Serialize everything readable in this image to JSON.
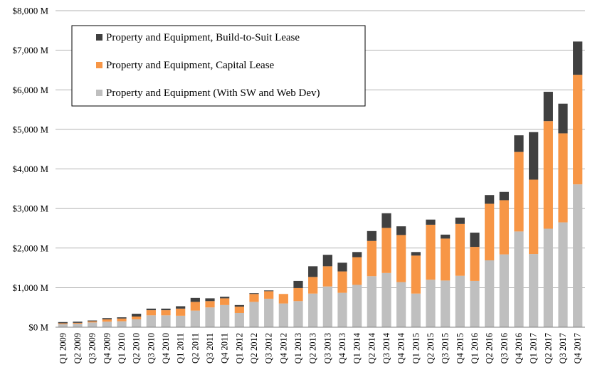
{
  "chart_data": {
    "type": "bar",
    "stacked": true,
    "title": "",
    "xlabel": "",
    "ylabel": "",
    "ylim": [
      0,
      8000
    ],
    "y_ticks": [
      "$0 M",
      "$1,000 M",
      "$2,000 M",
      "$3,000 M",
      "$4,000 M",
      "$5,000 M",
      "$6,000 M",
      "$7,000 M",
      "$8,000 M"
    ],
    "grid": true,
    "legend_position": "top-left",
    "categories": [
      "Q1 2009",
      "Q2 2009",
      "Q3 2009",
      "Q4 2009",
      "Q1 2010",
      "Q2 2010",
      "Q3 2010",
      "Q4 2010",
      "Q1 2011",
      "Q2 2011",
      "Q3 2011",
      "Q4 2011",
      "Q1 2012",
      "Q2 2012",
      "Q3 2012",
      "Q4 2012",
      "Q1 2013",
      "Q2 2013",
      "Q3 2013",
      "Q4 2013",
      "Q1 2014",
      "Q2 2014",
      "Q3 2014",
      "Q4 2014",
      "Q1 2015",
      "Q2 2015",
      "Q3 2015",
      "Q4 2015",
      "Q1 2016",
      "Q2 2016",
      "Q3 2016",
      "Q4 2016",
      "Q1 2017",
      "Q2 2017",
      "Q3 2017",
      "Q4 2017"
    ],
    "series": [
      {
        "name": "Property and Equipment (With SW and Web Dev)",
        "color": "#bfbfbf",
        "values": [
          80,
          90,
          120,
          140,
          150,
          200,
          300,
          300,
          290,
          420,
          500,
          560,
          360,
          640,
          720,
          600,
          660,
          850,
          1030,
          870,
          1070,
          1290,
          1370,
          1140,
          850,
          1200,
          1180,
          1300,
          1170,
          1690,
          1840,
          2420,
          1850,
          2490,
          2650,
          3610
        ]
      },
      {
        "name": "Property and Equipment, Capital Lease",
        "color": "#f79646",
        "values": [
          20,
          20,
          30,
          60,
          70,
          70,
          130,
          130,
          180,
          220,
          160,
          170,
          160,
          200,
          190,
          240,
          330,
          420,
          510,
          540,
          700,
          890,
          1140,
          1190,
          960,
          1390,
          1060,
          1310,
          860,
          1430,
          1370,
          2010,
          1880,
          2720,
          2250,
          2770
        ]
      },
      {
        "name": "Property and Equipment, Build-to-Suit Lease",
        "color": "#404040",
        "values": [
          30,
          30,
          20,
          30,
          30,
          70,
          40,
          40,
          60,
          100,
          70,
          40,
          40,
          20,
          20,
          0,
          180,
          270,
          290,
          220,
          130,
          250,
          370,
          220,
          90,
          130,
          100,
          160,
          360,
          220,
          210,
          420,
          1200,
          740,
          750,
          840
        ]
      }
    ]
  }
}
